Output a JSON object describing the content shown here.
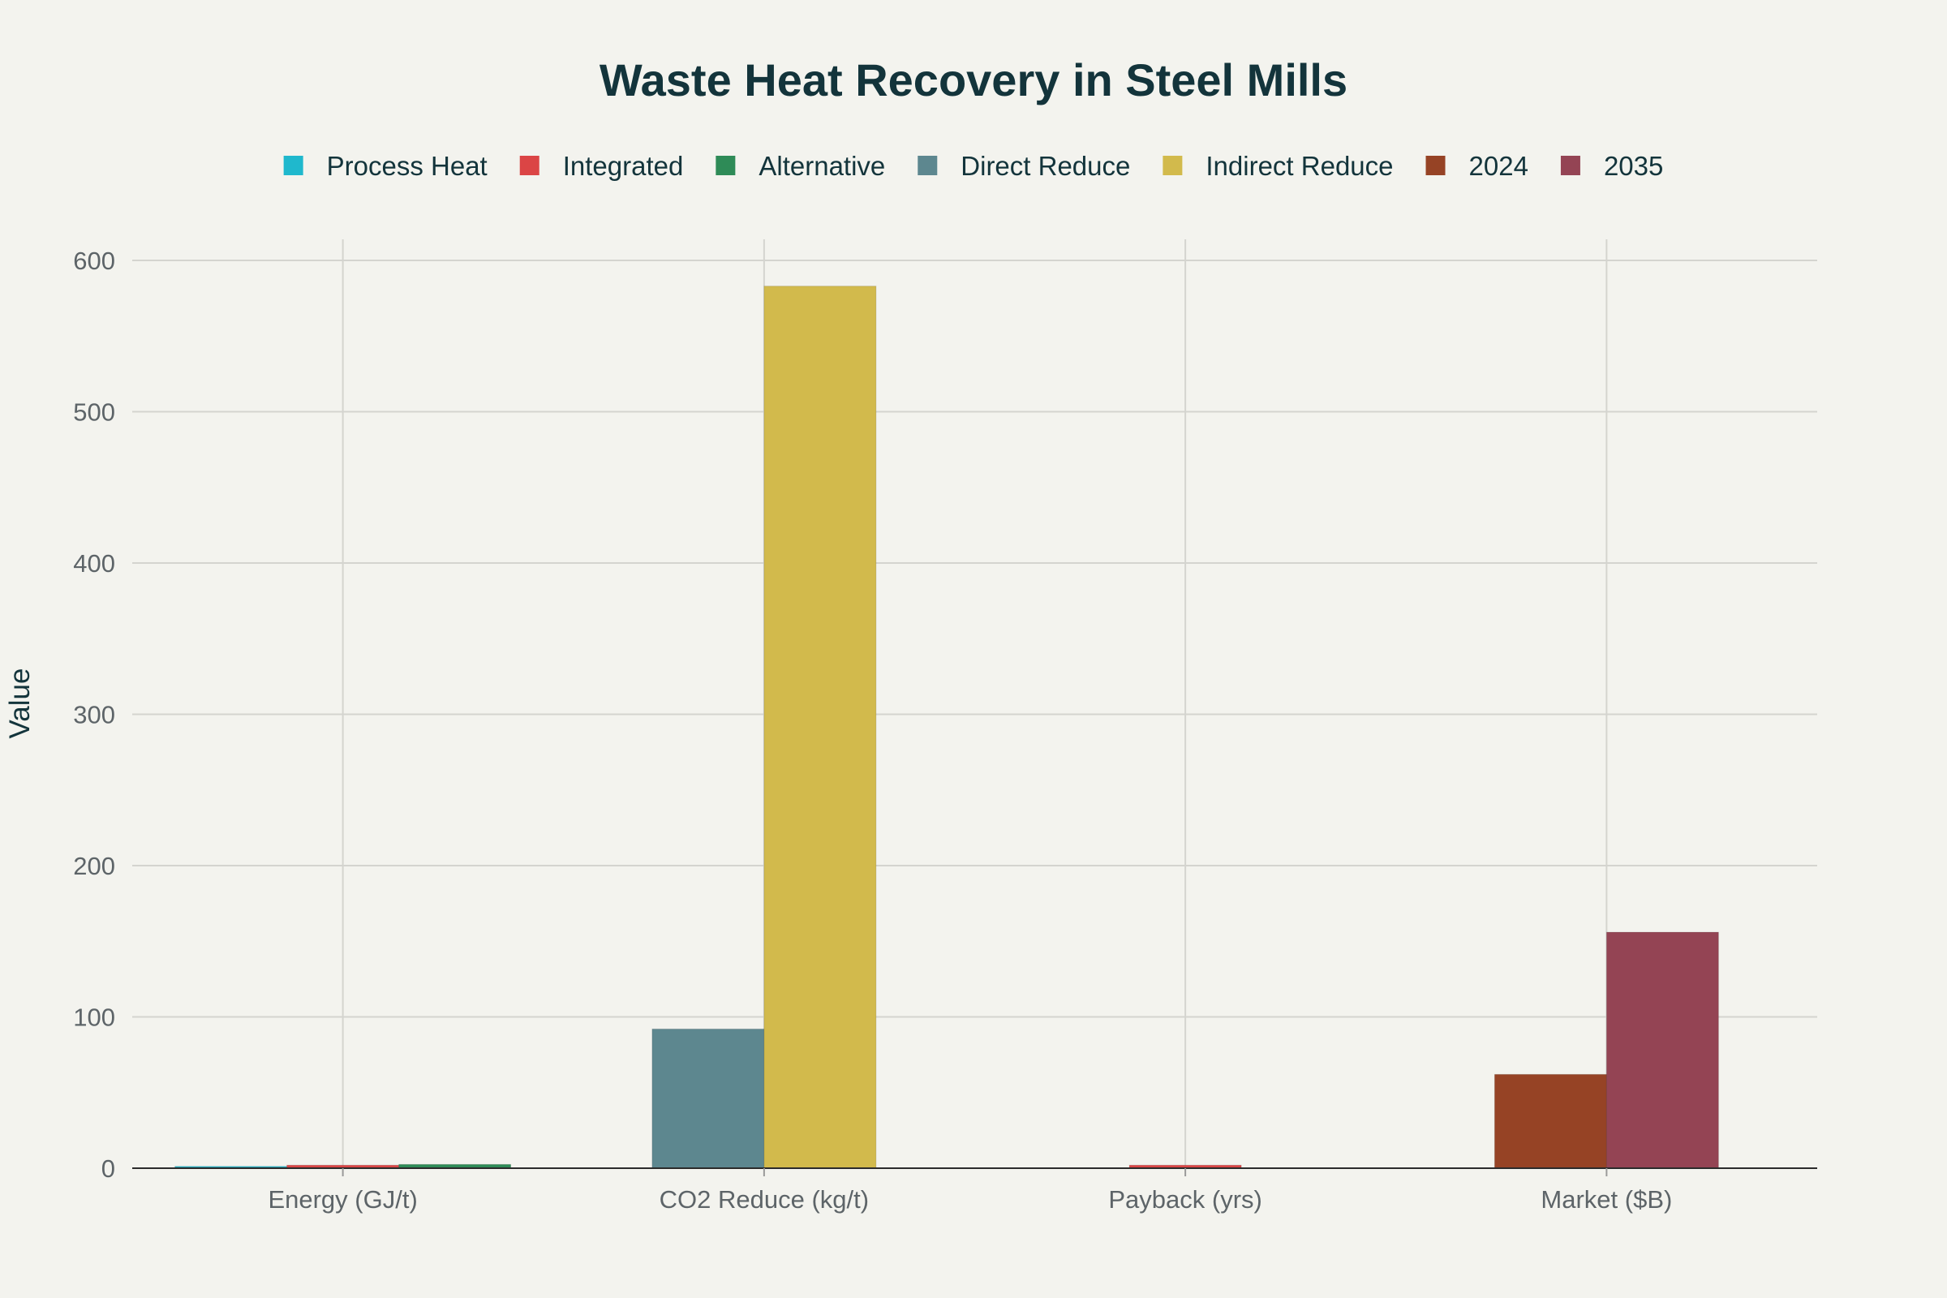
{
  "chart_data": {
    "type": "bar",
    "title": "Waste Heat Recovery in Steel Mills",
    "ylabel": "Value",
    "xlabel": "",
    "ylim": [
      0,
      600
    ],
    "yticks": [
      0,
      100,
      200,
      300,
      400,
      500,
      600
    ],
    "grid": true,
    "legend_position": "top",
    "categories": [
      "Energy (GJ/t)",
      "CO2 Reduce (kg/t)",
      "Payback (yrs)",
      "Market ($B)"
    ],
    "series": [
      {
        "name": "Process Heat",
        "color": "#1fb8cd",
        "values": [
          1.2,
          null,
          null,
          null
        ]
      },
      {
        "name": "Integrated",
        "color": "#db4545",
        "values": [
          2.0,
          null,
          2.0,
          null
        ]
      },
      {
        "name": "Alternative",
        "color": "#2e8b57",
        "values": [
          2.5,
          null,
          null,
          null
        ]
      },
      {
        "name": "Direct Reduce",
        "color": "#5d878f",
        "values": [
          null,
          92,
          null,
          null
        ]
      },
      {
        "name": "Indirect Reduce",
        "color": "#d2ba4c",
        "values": [
          null,
          583,
          null,
          null
        ]
      },
      {
        "name": "2024",
        "color": "#964325",
        "values": [
          null,
          null,
          null,
          62
        ]
      },
      {
        "name": "2035",
        "color": "#944454",
        "values": [
          null,
          null,
          null,
          156
        ]
      }
    ]
  }
}
